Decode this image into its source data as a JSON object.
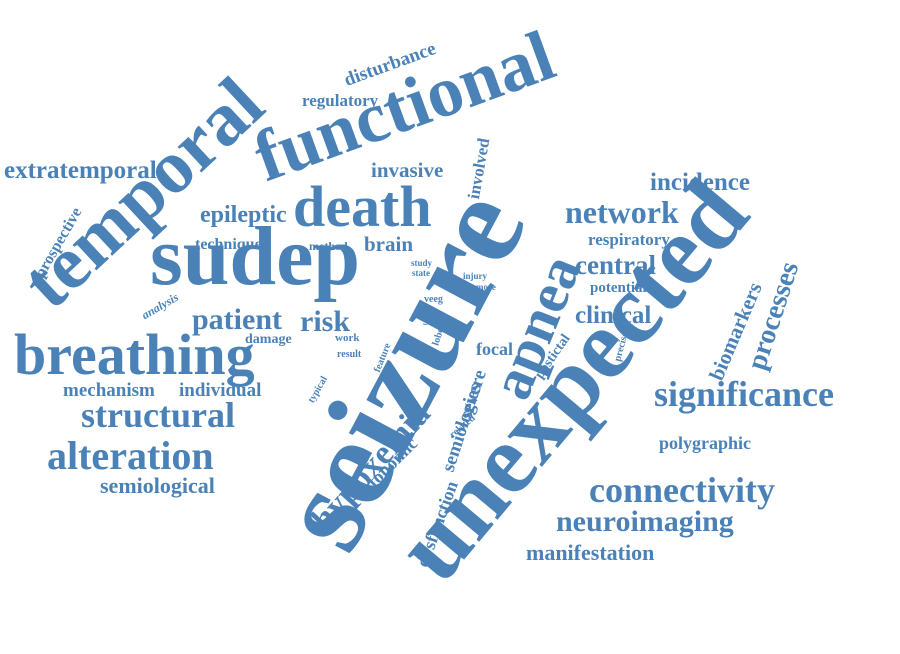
{
  "colors": {
    "word": "#4a82b8",
    "background": "#ffffff"
  },
  "words": {
    "seizure": "seizure",
    "unexpected": "unexpected",
    "sudep": "sudep",
    "functional": "functional",
    "temporal": "temporal",
    "breathing": "breathing",
    "death": "death",
    "apnea": "apnea",
    "significance": "significance",
    "connectivity": "connectivity",
    "neuroimaging": "neuroimaging",
    "alteration": "alteration",
    "structural": "structural",
    "hypoxemia": "hypoxemia",
    "network": "network",
    "patient": "patient",
    "risk": "risk",
    "central": "central",
    "clinical": "clinical",
    "incidence": "incidence",
    "processes": "processes",
    "extratemporal": "extratemporal",
    "epileptic": "epileptic",
    "manifestation": "manifestation",
    "semiological": "semiological",
    "mechanism": "mechanism",
    "individual": "individual",
    "invasive": "invasive",
    "brain": "brain",
    "respiratory": "respiratory",
    "biomarkers": "biomarkers",
    "polygraphic": "polygraphic",
    "disturbance": "disturbance",
    "regulatory": "regulatory",
    "prospective": "prospective",
    "technique": "technique",
    "semiologies": "semiologies",
    "severe": "severe",
    "dysfunction": "dysfunction",
    "autonomic": "autonomic",
    "focal": "focal",
    "involved": "involved",
    "potential": "potential",
    "postictal": "postictal",
    "damage": "damage",
    "site": "site",
    "method": "method",
    "analysis": "analysis",
    "work": "work",
    "result": "result",
    "feature": "feature",
    "typical": "typical",
    "related": "related",
    "precise": "precise",
    "lobe": "lobe",
    "veeg": "veeg",
    "injury": "injury",
    "more": "more",
    "study": "study",
    "state": "state"
  }
}
